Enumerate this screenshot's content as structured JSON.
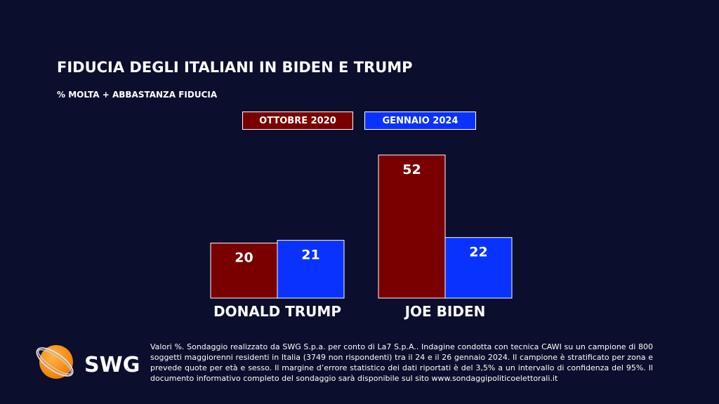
{
  "chart_data": {
    "type": "bar",
    "title": "FIDUCIA DEGLI ITALIANI IN BIDEN E TRUMP",
    "subtitle": "% MOLTA + ABBASTANZA FIDUCIA",
    "categories": [
      "DONALD TRUMP",
      "JOE BIDEN"
    ],
    "series": [
      {
        "name": "OTTOBRE 2020",
        "color": "#7a0000",
        "values": [
          20,
          52
        ]
      },
      {
        "name": "GENNAIO 2024",
        "color": "#0a32ff",
        "values": [
          21,
          22
        ]
      }
    ],
    "legend": "top",
    "grid": false,
    "ylim": [
      0,
      52
    ]
  },
  "footnote": "Valori %. Sondaggio realizzato da SWG S.p.a. per conto di La7 S.p.A.. Indagine condotta con tecnica CAWI su un campione di 800 soggetti maggiorenni residenti in Italia (3749 non rispondenti) tra il 24 e il 26 gennaio 2024. Il campione è stratificato per zona e prevede quote per età e sesso. Il margine d’errore statistico dei dati riportati è del 3,5% a un intervallo di confidenza del 95%. Il documento informativo completo del sondaggio sarà disponibile sul sito www.sondaggipoliticoelettorali.it",
  "logo": {
    "text": "SWG",
    "color": "#f7931e"
  }
}
